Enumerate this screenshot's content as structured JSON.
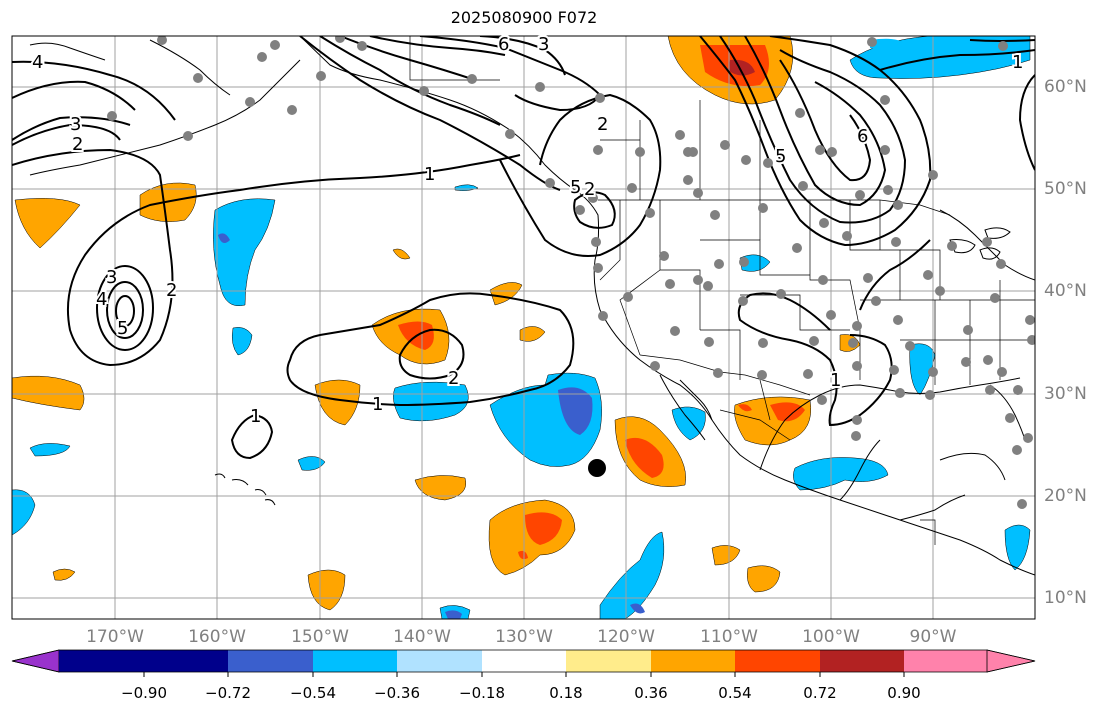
{
  "title": "2025080900 F072",
  "lon_labels": [
    "170°W",
    "160°W",
    "150°W",
    "140°W",
    "130°W",
    "120°W",
    "110°W",
    "100°W",
    "90°W"
  ],
  "lat_labels": [
    "60°N",
    "50°N",
    "40°N",
    "30°N",
    "20°N",
    "10°N"
  ],
  "contour_labels": [
    "4",
    "3",
    "2",
    "6",
    "3",
    "2",
    "1",
    "6",
    "5",
    "5",
    "3",
    "4",
    "2",
    "5",
    "1",
    "2",
    "1",
    "1",
    "1",
    "2"
  ],
  "colorbar": {
    "ticks": [
      "−0.90",
      "−0.72",
      "−0.54",
      "−0.36",
      "−0.18",
      "0.18",
      "0.36",
      "0.54",
      "0.72",
      "0.90"
    ],
    "colors": [
      "#9932cc",
      "#00008b",
      "#3a5fcd",
      "#00bfff",
      "#b0e2ff",
      "#ffffff",
      "#ffec8b",
      "#ffa500",
      "#ff4500",
      "#b22222",
      "#ff82ab"
    ]
  }
}
